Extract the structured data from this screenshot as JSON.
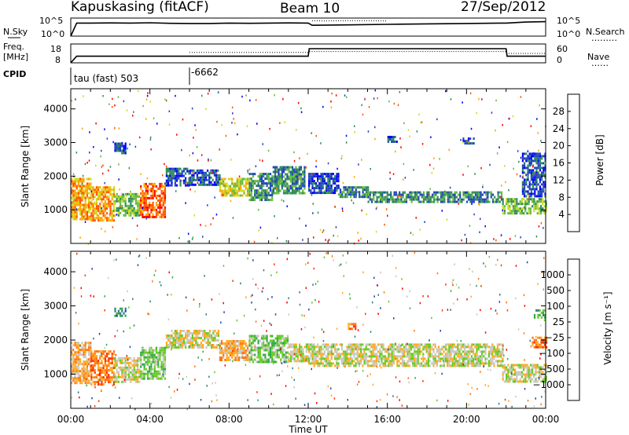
{
  "header": {
    "station": "Kapuskasing (fitACF)",
    "beam": "Beam 10",
    "date": "27/Sep/2012"
  },
  "side_labels": {
    "nsky": "N.Sky",
    "nsearch": "N.Search",
    "freq_line1": "Freq.",
    "freq_line2": "[MHz]",
    "nave": "Nave",
    "cpid": "CPID",
    "dots": "………",
    "dots_short": "……"
  },
  "cpid_info": {
    "label": "tau (fast) 503",
    "switch_label": "-6662",
    "switch_time_h": 6.0
  },
  "chart_data": [
    {
      "type": "line",
      "name": "noise-panel",
      "x_range_h": [
        0,
        24
      ],
      "left_ticks": [
        "10^5",
        "10^0"
      ],
      "right_ticks": [
        "10^5",
        "10^0"
      ],
      "series": [
        {
          "label": "N.Sky",
          "x": [
            0,
            0.3,
            1,
            2,
            3,
            4,
            5,
            6,
            7,
            8,
            9,
            10,
            11,
            12,
            12.2,
            14,
            16,
            18,
            20,
            22,
            23,
            24
          ],
          "y": [
            0.0,
            0.72,
            0.72,
            0.73,
            0.72,
            0.74,
            0.71,
            0.7,
            0.7,
            0.72,
            0.71,
            0.72,
            0.73,
            0.72,
            0.6,
            0.62,
            0.65,
            0.68,
            0.7,
            0.72,
            0.78,
            0.8
          ]
        },
        {
          "label": "N.Search",
          "x": [
            12.2,
            13,
            14,
            15,
            16
          ],
          "y": [
            0.85,
            0.84,
            0.86,
            0.85,
            0.84
          ]
        }
      ]
    },
    {
      "type": "line",
      "name": "freq-panel",
      "x_range_h": [
        0,
        24
      ],
      "left_ticks": [
        "18",
        "8"
      ],
      "right_ticks": [
        "60",
        "0"
      ],
      "series": [
        {
          "label": "Freq.",
          "x": [
            0,
            0.3,
            6,
            12,
            12.05,
            22,
            22.05,
            24
          ],
          "y": [
            0.0,
            0.35,
            0.35,
            0.35,
            0.75,
            0.75,
            0.35,
            0.35
          ]
        },
        {
          "label": "Nave",
          "x": [
            6,
            12,
            12.05,
            22,
            22.05,
            24
          ],
          "y": [
            0.55,
            0.55,
            0.6,
            0.6,
            0.5,
            0.5
          ]
        }
      ]
    },
    {
      "type": "heatmap",
      "name": "power-panel",
      "xlabel": "",
      "ylabel": "Slant Range [km]",
      "x_range_h": [
        0,
        24
      ],
      "ylim": [
        0,
        4600
      ],
      "yticks": [
        1000,
        2000,
        3000,
        4000
      ],
      "colorbar": {
        "label": "Power [dB]",
        "ticks": [
          "4",
          "8",
          "12",
          "16",
          "20",
          "24",
          "28"
        ],
        "colors": [
          "#0000ff",
          "#2244bb",
          "#2e8b57",
          "#66bb44",
          "#ccdd22",
          "#ffa500",
          "#ff5500",
          "#ff0000"
        ]
      },
      "regions": [
        {
          "t": [
            0.0,
            1.0
          ],
          "r": [
            750,
            1950
          ],
          "level": 5
        },
        {
          "t": [
            1.0,
            2.2
          ],
          "r": [
            700,
            1700
          ],
          "level": 5
        },
        {
          "t": [
            2.2,
            3.5
          ],
          "r": [
            850,
            1500
          ],
          "level": 3
        },
        {
          "t": [
            3.5,
            4.8
          ],
          "r": [
            800,
            1800
          ],
          "level": 6
        },
        {
          "t": [
            4.8,
            6.0
          ],
          "r": [
            1700,
            2250
          ],
          "level": 1
        },
        {
          "t": [
            6.0,
            7.5
          ],
          "r": [
            1750,
            2200
          ],
          "level": 1
        },
        {
          "t": [
            7.5,
            9.0
          ],
          "r": [
            1400,
            1950
          ],
          "level": 4
        },
        {
          "t": [
            9.0,
            10.2
          ],
          "r": [
            1300,
            2100
          ],
          "level": 2
        },
        {
          "t": [
            10.2,
            11.8
          ],
          "r": [
            1500,
            2300
          ],
          "level": 2
        },
        {
          "t": [
            12.0,
            13.5
          ],
          "r": [
            1500,
            2100
          ],
          "level": 1
        },
        {
          "t": [
            13.5,
            15.0
          ],
          "r": [
            1350,
            1700
          ],
          "level": 2
        },
        {
          "t": [
            15.0,
            21.8
          ],
          "r": [
            1250,
            1550
          ],
          "level": 2
        },
        {
          "t": [
            21.8,
            24.0
          ],
          "r": [
            900,
            1350
          ],
          "level": 3
        },
        {
          "t": [
            22.8,
            24.0
          ],
          "r": [
            1400,
            2700
          ],
          "level": 1
        },
        {
          "t": [
            2.2,
            2.8
          ],
          "r": [
            2650,
            3000
          ],
          "level": 1
        },
        {
          "t": [
            16.0,
            16.5
          ],
          "r": [
            3050,
            3200
          ],
          "level": 1
        },
        {
          "t": [
            19.8,
            20.4
          ],
          "r": [
            2950,
            3150
          ],
          "level": 1
        }
      ]
    },
    {
      "type": "heatmap",
      "name": "velocity-panel",
      "xlabel": "Time UT",
      "ylabel": "Slant Range [km]",
      "x_range_h": [
        0,
        24
      ],
      "xticks": [
        "00:00",
        "04:00",
        "08:00",
        "12:00",
        "16:00",
        "20:00",
        "00:00"
      ],
      "ylim": [
        0,
        4600
      ],
      "yticks": [
        1000,
        2000,
        3000,
        4000
      ],
      "colorbar": {
        "label": "Velocity [m s⁻¹]",
        "ticks": [
          "1000",
          "500",
          "100",
          "25",
          "−25",
          "−100",
          "−500",
          "−1000"
        ],
        "colors": [
          "#2244aa",
          "#2e7d8a",
          "#33aa44",
          "#66cc22",
          "#c8c8c0",
          "#ffaa22",
          "#ff7711",
          "#ff3300",
          "#ff0000"
        ]
      },
      "regions": [
        {
          "t": [
            0.0,
            1.0
          ],
          "r": [
            750,
            1950
          ],
          "level": 5
        },
        {
          "t": [
            1.0,
            2.2
          ],
          "r": [
            700,
            1700
          ],
          "level": 6
        },
        {
          "t": [
            2.2,
            3.5
          ],
          "r": [
            800,
            1500
          ],
          "level": 4
        },
        {
          "t": [
            3.5,
            4.8
          ],
          "r": [
            900,
            1800
          ],
          "level": 3
        },
        {
          "t": [
            4.8,
            7.5
          ],
          "r": [
            1750,
            2300
          ],
          "level": 4
        },
        {
          "t": [
            7.5,
            9.0
          ],
          "r": [
            1400,
            2000
          ],
          "level": 5
        },
        {
          "t": [
            9.0,
            11.0
          ],
          "r": [
            1350,
            2150
          ],
          "level": 3
        },
        {
          "t": [
            11.0,
            12.0
          ],
          "r": [
            1400,
            1900
          ],
          "level": 4
        },
        {
          "t": [
            12.0,
            21.8
          ],
          "r": [
            1250,
            1900
          ],
          "level": 4
        },
        {
          "t": [
            21.8,
            24.0
          ],
          "r": [
            800,
            1300
          ],
          "level": 4
        },
        {
          "t": [
            23.3,
            24.0
          ],
          "r": [
            1800,
            2100
          ],
          "level": 6
        },
        {
          "t": [
            23.4,
            24.0
          ],
          "r": [
            2650,
            2900
          ],
          "level": 2
        },
        {
          "t": [
            2.2,
            2.8
          ],
          "r": [
            2700,
            2950
          ],
          "level": 1
        },
        {
          "t": [
            14.0,
            14.4
          ],
          "r": [
            2300,
            2500
          ],
          "level": 6
        }
      ]
    }
  ]
}
